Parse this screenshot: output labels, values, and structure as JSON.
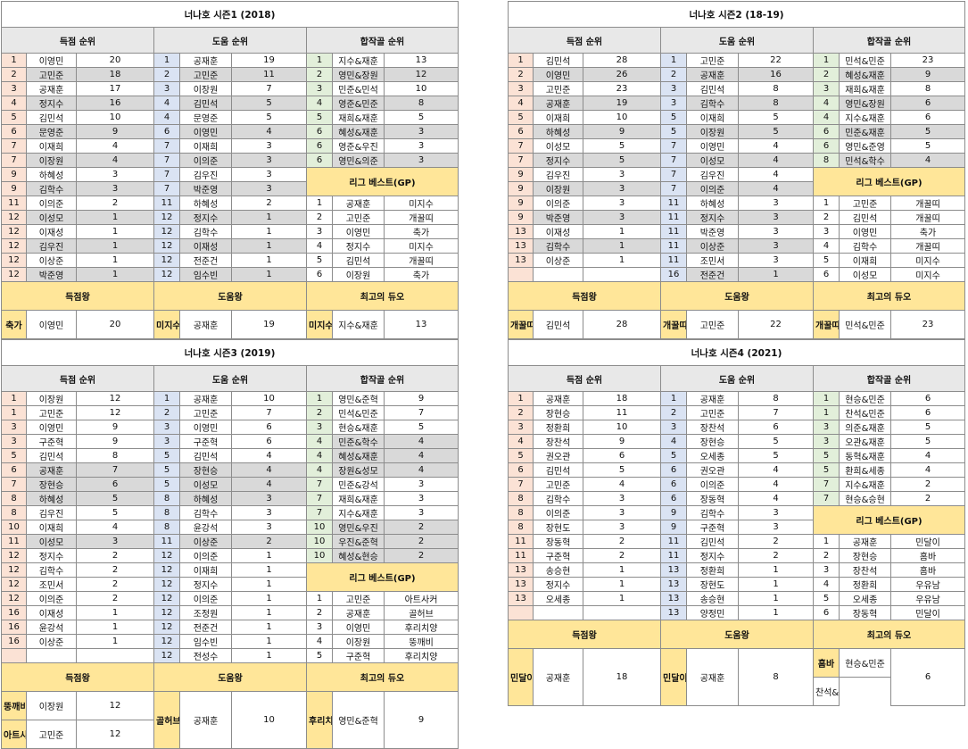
{
  "headers": {
    "scoring": "득점 순위",
    "assist": "도움 순위",
    "combo": "합작골 순위",
    "league_best": "리그 베스트(GP)",
    "top_scorer": "득점왕",
    "top_assist": "도움왕",
    "best_duo": "최고의 듀오"
  },
  "colors": {
    "rank_scoring": "#fbe2d5",
    "rank_assist": "#dae3f3",
    "rank_combo": "#e2efda",
    "highlight": "#ffe699",
    "alt_row": "#d9d9d9"
  },
  "seasons": [
    {
      "title": "너나호 시즌1 (2018)",
      "scoring": [
        [
          "1",
          "이영민",
          "20"
        ],
        [
          "2",
          "고민준",
          "18"
        ],
        [
          "3",
          "공재훈",
          "17"
        ],
        [
          "4",
          "정지수",
          "16"
        ],
        [
          "5",
          "김민석",
          "10"
        ],
        [
          "6",
          "문영준",
          "9"
        ],
        [
          "7",
          "이재희",
          "4"
        ],
        [
          "7",
          "이장원",
          "4"
        ],
        [
          "9",
          "하혜성",
          "3"
        ],
        [
          "9",
          "김학수",
          "3"
        ],
        [
          "11",
          "이의준",
          "2"
        ],
        [
          "12",
          "이성모",
          "1"
        ],
        [
          "12",
          "이재성",
          "1"
        ],
        [
          "12",
          "김우진",
          "1"
        ],
        [
          "12",
          "이상준",
          "1"
        ],
        [
          "12",
          "박준영",
          "1"
        ]
      ],
      "assist": [
        [
          "1",
          "공재훈",
          "19"
        ],
        [
          "2",
          "고민준",
          "11"
        ],
        [
          "3",
          "이장원",
          "7"
        ],
        [
          "4",
          "김민석",
          "5"
        ],
        [
          "4",
          "문영준",
          "5"
        ],
        [
          "6",
          "이영민",
          "4"
        ],
        [
          "7",
          "이재희",
          "3"
        ],
        [
          "7",
          "이의준",
          "3"
        ],
        [
          "7",
          "김우진",
          "3"
        ],
        [
          "7",
          "박준영",
          "3"
        ],
        [
          "11",
          "하혜성",
          "2"
        ],
        [
          "12",
          "정지수",
          "1"
        ],
        [
          "12",
          "김학수",
          "1"
        ],
        [
          "12",
          "이재성",
          "1"
        ],
        [
          "12",
          "전준건",
          "1"
        ],
        [
          "12",
          "임수빈",
          "1"
        ]
      ],
      "combo": [
        [
          "1",
          "지수&재훈",
          "13"
        ],
        [
          "2",
          "영민&장원",
          "12"
        ],
        [
          "3",
          "민준&민석",
          "10"
        ],
        [
          "4",
          "영준&민준",
          "8"
        ],
        [
          "5",
          "재희&재훈",
          "5"
        ],
        [
          "6",
          "혜성&재훈",
          "3"
        ],
        [
          "6",
          "영준&우진",
          "3"
        ],
        [
          "6",
          "영민&의준",
          "3"
        ]
      ],
      "best": [
        [
          "1",
          "공재훈",
          "미지수"
        ],
        [
          "2",
          "고민준",
          "개꿀띠"
        ],
        [
          "3",
          "이영민",
          "축가"
        ],
        [
          "4",
          "정지수",
          "미지수"
        ],
        [
          "5",
          "김민석",
          "개꿀띠"
        ],
        [
          "6",
          "이장원",
          "축가"
        ]
      ],
      "scorer_award": {
        "team": "축가",
        "name": "이영민",
        "value": "20"
      },
      "assist_award": {
        "team": "미지수",
        "name": "공재훈",
        "value": "19"
      },
      "duo_award": {
        "team": "미지수",
        "names": [
          "지수&재훈"
        ],
        "value": "13"
      }
    },
    {
      "title": "너나호 시즌2 (18-19)",
      "scoring": [
        [
          "1",
          "김민석",
          "28"
        ],
        [
          "2",
          "이영민",
          "26"
        ],
        [
          "3",
          "고민준",
          "23"
        ],
        [
          "4",
          "공재훈",
          "19"
        ],
        [
          "5",
          "이재희",
          "10"
        ],
        [
          "6",
          "하혜성",
          "9"
        ],
        [
          "7",
          "이성모",
          "5"
        ],
        [
          "7",
          "정지수",
          "5"
        ],
        [
          "9",
          "김우진",
          "3"
        ],
        [
          "9",
          "이장원",
          "3"
        ],
        [
          "9",
          "이의준",
          "3"
        ],
        [
          "9",
          "박준영",
          "3"
        ],
        [
          "13",
          "이재성",
          "1"
        ],
        [
          "13",
          "김학수",
          "1"
        ],
        [
          "13",
          "이상준",
          "1"
        ]
      ],
      "assist": [
        [
          "1",
          "고민준",
          "22"
        ],
        [
          "2",
          "공재훈",
          "16"
        ],
        [
          "3",
          "김민석",
          "8"
        ],
        [
          "3",
          "김학수",
          "8"
        ],
        [
          "5",
          "이재희",
          "5"
        ],
        [
          "5",
          "이장원",
          "5"
        ],
        [
          "7",
          "이영민",
          "4"
        ],
        [
          "7",
          "이성모",
          "4"
        ],
        [
          "7",
          "김우진",
          "4"
        ],
        [
          "7",
          "이의준",
          "4"
        ],
        [
          "11",
          "하혜성",
          "3"
        ],
        [
          "11",
          "정지수",
          "3"
        ],
        [
          "11",
          "박준영",
          "3"
        ],
        [
          "11",
          "이상준",
          "3"
        ],
        [
          "11",
          "조민서",
          "3"
        ],
        [
          "16",
          "전준건",
          "1"
        ]
      ],
      "combo": [
        [
          "1",
          "민석&민준",
          "23"
        ],
        [
          "2",
          "혜성&재훈",
          "9"
        ],
        [
          "3",
          "재희&재훈",
          "8"
        ],
        [
          "4",
          "영민&장원",
          "6"
        ],
        [
          "4",
          "지수&재훈",
          "6"
        ],
        [
          "6",
          "민준&재훈",
          "5"
        ],
        [
          "6",
          "영민&준영",
          "5"
        ],
        [
          "8",
          "민석&학수",
          "4"
        ]
      ],
      "best": [
        [
          "1",
          "고민준",
          "개꿀띠"
        ],
        [
          "2",
          "김민석",
          "개꿀띠"
        ],
        [
          "3",
          "이영민",
          "축가"
        ],
        [
          "4",
          "김학수",
          "개꿀띠"
        ],
        [
          "5",
          "이재희",
          "미지수"
        ],
        [
          "6",
          "이성모",
          "미지수"
        ]
      ],
      "scorer_award": {
        "team": "개꿀띠",
        "name": "김민석",
        "value": "28"
      },
      "assist_award": {
        "team": "개꿀띠",
        "name": "고민준",
        "value": "22"
      },
      "duo_award": {
        "team": "개꿀띠",
        "names": [
          "민석&민준"
        ],
        "value": "23"
      }
    },
    {
      "title": "너나호 시즌3 (2019)",
      "scoring": [
        [
          "1",
          "이장원",
          "12"
        ],
        [
          "1",
          "고민준",
          "12"
        ],
        [
          "3",
          "이영민",
          "9"
        ],
        [
          "3",
          "구준혁",
          "9"
        ],
        [
          "5",
          "김민석",
          "8"
        ],
        [
          "6",
          "공재훈",
          "7"
        ],
        [
          "7",
          "장현승",
          "6"
        ],
        [
          "8",
          "하혜성",
          "5"
        ],
        [
          "8",
          "김우진",
          "5"
        ],
        [
          "10",
          "이재희",
          "4"
        ],
        [
          "11",
          "이성모",
          "3"
        ],
        [
          "12",
          "정지수",
          "2"
        ],
        [
          "12",
          "김학수",
          "2"
        ],
        [
          "12",
          "조민서",
          "2"
        ],
        [
          "12",
          "이의준",
          "2"
        ],
        [
          "16",
          "이재성",
          "1"
        ],
        [
          "16",
          "윤강석",
          "1"
        ],
        [
          "16",
          "이상준",
          "1"
        ]
      ],
      "assist": [
        [
          "1",
          "공재훈",
          "10"
        ],
        [
          "2",
          "고민준",
          "7"
        ],
        [
          "3",
          "이영민",
          "6"
        ],
        [
          "3",
          "구준혁",
          "6"
        ],
        [
          "5",
          "김민석",
          "4"
        ],
        [
          "5",
          "장현승",
          "4"
        ],
        [
          "5",
          "이성모",
          "4"
        ],
        [
          "8",
          "하혜성",
          "3"
        ],
        [
          "8",
          "김학수",
          "3"
        ],
        [
          "8",
          "윤강석",
          "3"
        ],
        [
          "11",
          "이상준",
          "2"
        ],
        [
          "12",
          "이의준",
          "1"
        ],
        [
          "12",
          "이재희",
          "1"
        ],
        [
          "12",
          "정지수",
          "1"
        ],
        [
          "12",
          "이의준",
          "1"
        ],
        [
          "12",
          "조정원",
          "1"
        ],
        [
          "12",
          "전준건",
          "1"
        ],
        [
          "12",
          "임수빈",
          "1"
        ],
        [
          "12",
          "전성수",
          "1"
        ]
      ],
      "combo": [
        [
          "1",
          "영민&준혁",
          "9"
        ],
        [
          "2",
          "민석&민준",
          "7"
        ],
        [
          "3",
          "현승&재훈",
          "5"
        ],
        [
          "4",
          "민준&학수",
          "4"
        ],
        [
          "4",
          "혜성&재훈",
          "4"
        ],
        [
          "4",
          "장원&성모",
          "4"
        ],
        [
          "7",
          "민준&강석",
          "3"
        ],
        [
          "7",
          "재희&재훈",
          "3"
        ],
        [
          "7",
          "지수&재훈",
          "3"
        ],
        [
          "10",
          "영민&우진",
          "2"
        ],
        [
          "10",
          "우진&준혁",
          "2"
        ],
        [
          "10",
          "혜성&현승",
          "2"
        ]
      ],
      "best": [
        [
          "1",
          "고민준",
          "아트사커"
        ],
        [
          "2",
          "공재훈",
          "골허브"
        ],
        [
          "3",
          "이영민",
          "후리치양"
        ],
        [
          "4",
          "이장원",
          "뚱깨비"
        ],
        [
          "5",
          "구준혁",
          "후리치양"
        ],
        [
          "6",
          "김민석",
          "아트사커"
        ]
      ],
      "scorer_award": [
        {
          "team": "뚱깨비",
          "name": "이장원",
          "value": "12"
        },
        {
          "team": "아트사커",
          "name": "고민준",
          "value": "12"
        }
      ],
      "assist_award": {
        "team": "골허브",
        "name": "공재훈",
        "value": "10"
      },
      "duo_award": {
        "team": "후리치양",
        "names": [
          "영민&준혁"
        ],
        "value": "9"
      }
    },
    {
      "title": "너나호 시즌4 (2021)",
      "scoring": [
        [
          "1",
          "공재훈",
          "18"
        ],
        [
          "2",
          "장현승",
          "11"
        ],
        [
          "3",
          "정환희",
          "10"
        ],
        [
          "4",
          "장찬석",
          "9"
        ],
        [
          "5",
          "권오관",
          "6"
        ],
        [
          "6",
          "김민석",
          "5"
        ],
        [
          "7",
          "고민준",
          "4"
        ],
        [
          "8",
          "김학수",
          "3"
        ],
        [
          "8",
          "이의준",
          "3"
        ],
        [
          "8",
          "장현도",
          "3"
        ],
        [
          "11",
          "장동혁",
          "2"
        ],
        [
          "11",
          "구준혁",
          "2"
        ],
        [
          "13",
          "송승현",
          "1"
        ],
        [
          "13",
          "정지수",
          "1"
        ],
        [
          "13",
          "오세종",
          "1"
        ]
      ],
      "assist": [
        [
          "1",
          "공재훈",
          "8"
        ],
        [
          "2",
          "고민준",
          "7"
        ],
        [
          "3",
          "장찬석",
          "6"
        ],
        [
          "4",
          "장현승",
          "5"
        ],
        [
          "5",
          "오세종",
          "5"
        ],
        [
          "6",
          "권오관",
          "4"
        ],
        [
          "6",
          "이의준",
          "4"
        ],
        [
          "6",
          "장동혁",
          "4"
        ],
        [
          "9",
          "김학수",
          "3"
        ],
        [
          "9",
          "구준혁",
          "3"
        ],
        [
          "11",
          "김민석",
          "2"
        ],
        [
          "11",
          "정지수",
          "2"
        ],
        [
          "13",
          "정환희",
          "1"
        ],
        [
          "13",
          "장현도",
          "1"
        ],
        [
          "13",
          "송승현",
          "1"
        ],
        [
          "13",
          "양정민",
          "1"
        ]
      ],
      "combo": [
        [
          "1",
          "현승&민준",
          "6"
        ],
        [
          "1",
          "찬석&민준",
          "6"
        ],
        [
          "3",
          "의준&재훈",
          "5"
        ],
        [
          "3",
          "오관&재훈",
          "5"
        ],
        [
          "5",
          "동혁&재훈",
          "4"
        ],
        [
          "5",
          "환희&세종",
          "4"
        ],
        [
          "7",
          "지수&재훈",
          "2"
        ],
        [
          "7",
          "현승&승현",
          "2"
        ]
      ],
      "best": [
        [
          "1",
          "공재훈",
          "민달이"
        ],
        [
          "2",
          "장현승",
          "홈바"
        ],
        [
          "3",
          "장찬석",
          "홈바"
        ],
        [
          "4",
          "정환희",
          "우유남"
        ],
        [
          "5",
          "오세종",
          "우유남"
        ],
        [
          "6",
          "장동혁",
          "민달이"
        ]
      ],
      "scorer_award": {
        "team": "민달이",
        "name": "공재훈",
        "value": "18"
      },
      "assist_award": {
        "team": "민달이",
        "name": "공재훈",
        "value": "8"
      },
      "duo_award": {
        "team": "홈바",
        "names": [
          "현승&민준",
          "찬석&민준"
        ],
        "value": "6"
      }
    }
  ]
}
